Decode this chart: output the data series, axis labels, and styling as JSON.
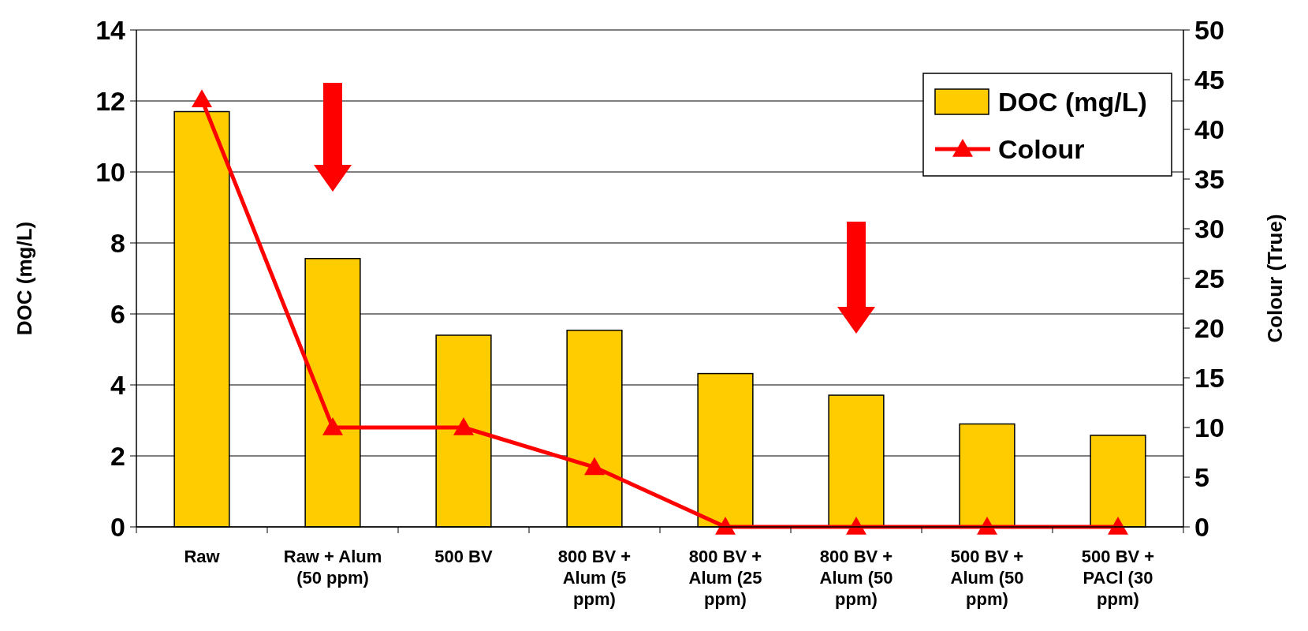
{
  "chart_data": {
    "type": "bar",
    "ylabel": "DOC (mg/L)",
    "y2label": "Colour (True)",
    "categories": [
      "Raw",
      "Raw + Alum (50 ppm)",
      "500 BV",
      "800 BV + Alum (5 ppm)",
      "800 BV + Alum (25 ppm)",
      "800 BV + Alum (50 ppm)",
      "500 BV + Alum (50 ppm)",
      "500 BV + PACl (30 ppm)"
    ],
    "series": [
      {
        "name": "DOC (mg/L)",
        "color": "#ffcc00",
        "values": [
          11.7,
          7.56,
          5.4,
          5.54,
          4.32,
          3.71,
          2.9,
          2.58
        ]
      },
      {
        "name": "Colour",
        "type": "line",
        "axis": "y2",
        "color": "#ff0000",
        "marker": "triangle",
        "line_style": "solid",
        "values": [
          43,
          10,
          10,
          6,
          0,
          0,
          0,
          0
        ]
      }
    ],
    "ylim": [
      0,
      14
    ],
    "yticks": [
      0,
      2,
      4,
      6,
      8,
      10,
      12,
      14
    ],
    "y2lim": [
      0,
      50
    ],
    "y2ticks": [
      0,
      5,
      10,
      15,
      20,
      25,
      30,
      35,
      40,
      45,
      50
    ],
    "grid": "y",
    "legend": "top right"
  }
}
